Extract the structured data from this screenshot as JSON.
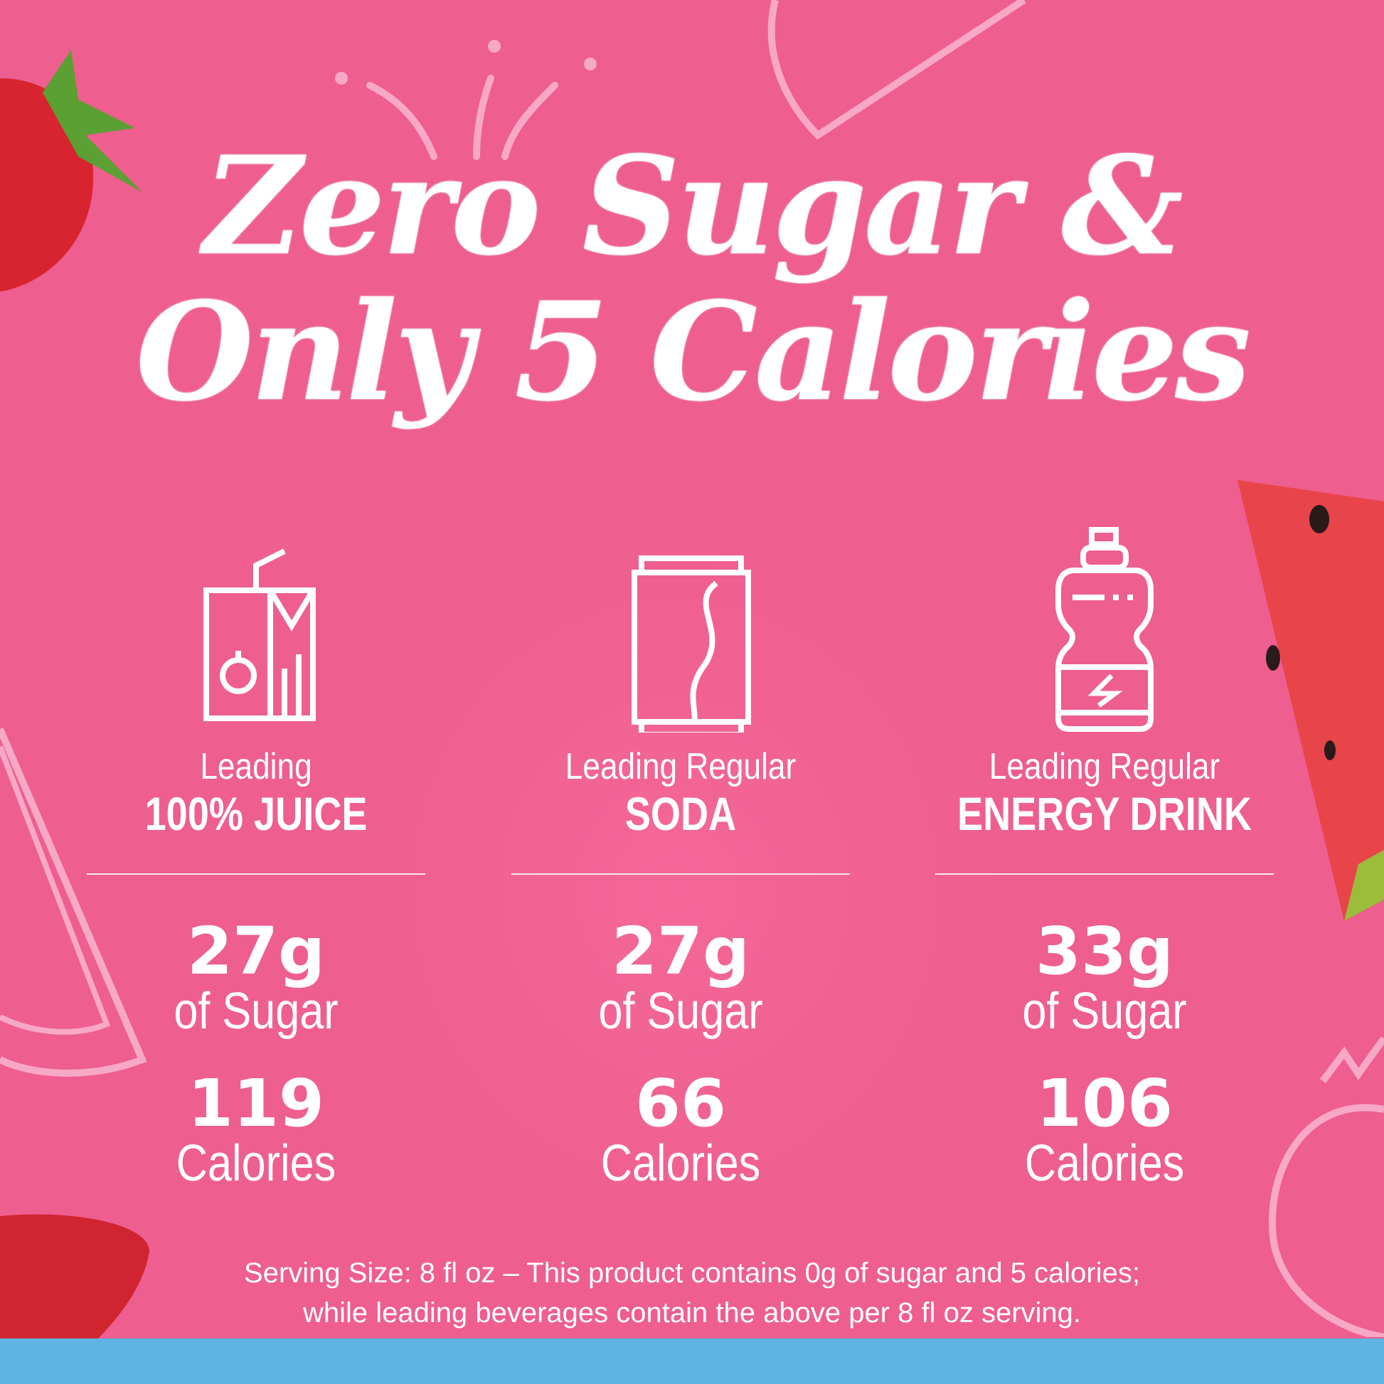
{
  "headline": {
    "line1": "Zero Sugar &",
    "line2": "Only 5 Calories"
  },
  "columns": [
    {
      "icon": "juice-box-icon",
      "label_top": "Leading",
      "label_main": "100% JUICE",
      "sugar_value": "27g",
      "sugar_unit": "of Sugar",
      "calories_value": "119",
      "calories_unit": "Calories"
    },
    {
      "icon": "soda-can-icon",
      "label_top": "Leading Regular",
      "label_main": "SODA",
      "sugar_value": "27g",
      "sugar_unit": "of Sugar",
      "calories_value": "66",
      "calories_unit": "Calories"
    },
    {
      "icon": "energy-drink-bottle-icon",
      "label_top": "Leading Regular",
      "label_main": "ENERGY DRINK",
      "sugar_value": "33g",
      "sugar_unit": "of Sugar",
      "calories_value": "106",
      "calories_unit": "Calories"
    }
  ],
  "footnote": {
    "line1": "Serving Size: 8 fl oz – This product contains 0g of sugar and 5 calories;",
    "line2": "while leading beverages contain the above per 8 fl oz serving."
  },
  "colors": {
    "background": "#ee5e8e",
    "band": "#5fb4e3",
    "text": "#ffffff"
  }
}
